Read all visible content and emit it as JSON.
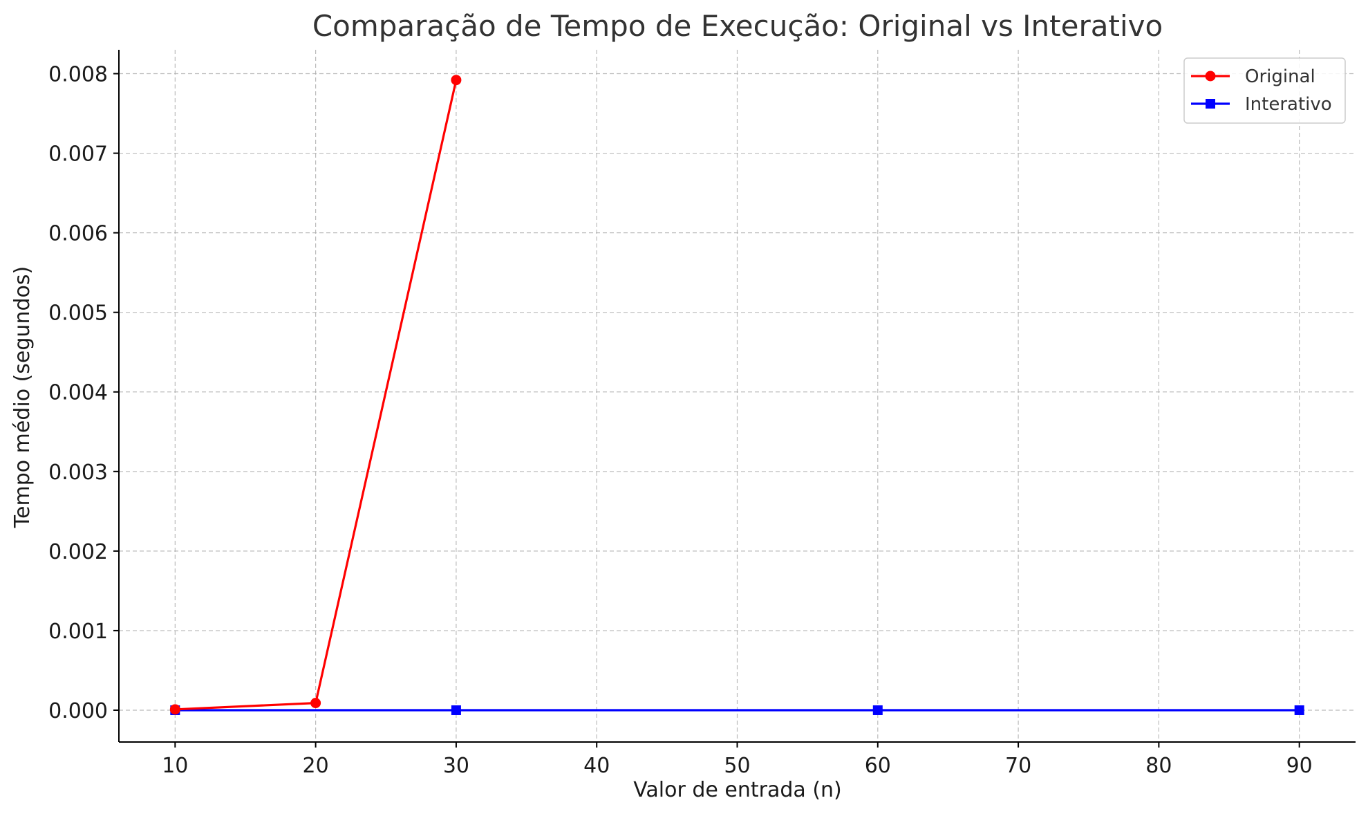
{
  "chart_data": {
    "type": "line",
    "title": "Comparação de Tempo de Execução: Original vs Interativo",
    "xlabel": "Valor de entrada (n)",
    "ylabel": "Tempo médio (segundos)",
    "xlim": [
      6,
      94
    ],
    "ylim": [
      -0.0004,
      0.0083
    ],
    "xticks": [
      10,
      20,
      30,
      40,
      50,
      60,
      70,
      80,
      90
    ],
    "xtick_labels": [
      "10",
      "20",
      "30",
      "40",
      "50",
      "60",
      "70",
      "80",
      "90"
    ],
    "yticks": [
      0,
      0.001,
      0.002,
      0.003,
      0.004,
      0.005,
      0.006,
      0.007,
      0.008
    ],
    "ytick_labels": [
      "0.000",
      "0.001",
      "0.002",
      "0.003",
      "0.004",
      "0.005",
      "0.006",
      "0.007",
      "0.008"
    ],
    "grid": true,
    "legend_position": "top-right",
    "series": [
      {
        "name": "Original",
        "color": "#ff0000",
        "marker": "circle",
        "x": [
          10,
          20,
          30
        ],
        "y": [
          1e-05,
          9e-05,
          0.00792
        ]
      },
      {
        "name": "Interativo",
        "color": "#0000ff",
        "marker": "square",
        "x": [
          10,
          30,
          60,
          90
        ],
        "y": [
          0.0,
          0.0,
          0.0,
          0.0
        ]
      }
    ]
  }
}
